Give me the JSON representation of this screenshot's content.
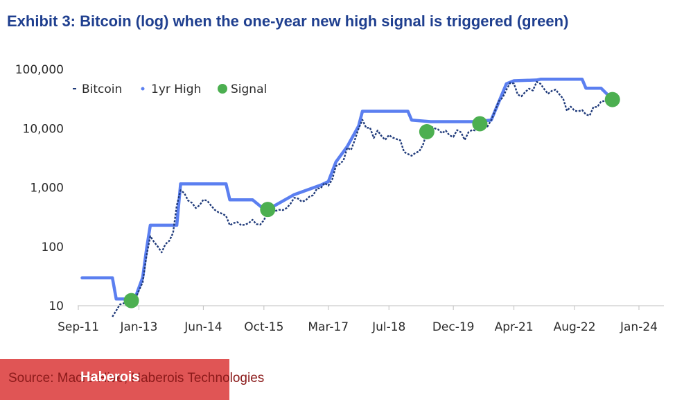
{
  "title": "Exhibit 3: Bitcoin (log) when the one-year new high signal is triggered (green)",
  "source": "Source: Macro Hive, Haberois Technologies",
  "watermark": "Haberois",
  "colors": {
    "title": "#1f3f8f",
    "bitcoin": "#1f3a7a",
    "high": "#5b7ff0",
    "signal": "#4caf50",
    "source_box": "#e05555"
  },
  "chart_data": {
    "type": "line",
    "title": "Exhibit 3: Bitcoin (log) when the one-year new high signal is triggered (green)",
    "y_scale": "log",
    "ylim": [
      10,
      100000
    ],
    "y_ticks": [
      10,
      100,
      1000,
      10000,
      100000
    ],
    "y_tick_labels": [
      "10",
      "100",
      "1,000",
      "10,000",
      "100,000"
    ],
    "xlim": [
      "2011-09",
      "2024-01"
    ],
    "x_tick_labels": [
      "Sep-11",
      "Jan-13",
      "Jun-14",
      "Oct-15",
      "Mar-17",
      "Jul-18",
      "Dec-19",
      "Apr-21",
      "Aug-22",
      "Jan-24"
    ],
    "x_ticks": [
      "2011-09",
      "2013-01",
      "2014-06",
      "2015-10",
      "2017-03",
      "2018-07",
      "2019-12",
      "2021-04",
      "2022-08",
      "2024-01"
    ],
    "legend": {
      "position": "top-left",
      "entries": [
        "Bitcoin",
        "1yr High",
        "Signal"
      ]
    },
    "series": [
      {
        "name": "Bitcoin",
        "style": "dashed",
        "points": [
          [
            "2012-06",
            6.5
          ],
          [
            "2012-08",
            10.5
          ],
          [
            "2012-10",
            11.5
          ],
          [
            "2012-12",
            13
          ],
          [
            "2013-02",
            25
          ],
          [
            "2013-03",
            70
          ],
          [
            "2013-04",
            150
          ],
          [
            "2013-05",
            120
          ],
          [
            "2013-06",
            100
          ],
          [
            "2013-07",
            80
          ],
          [
            "2013-08",
            110
          ],
          [
            "2013-09",
            125
          ],
          [
            "2013-10",
            170
          ],
          [
            "2013-11",
            500
          ],
          [
            "2013-12",
            900
          ],
          [
            "2014-01",
            800
          ],
          [
            "2014-02",
            600
          ],
          [
            "2014-03",
            550
          ],
          [
            "2014-04",
            450
          ],
          [
            "2014-05",
            500
          ],
          [
            "2014-06",
            620
          ],
          [
            "2014-07",
            600
          ],
          [
            "2014-08",
            500
          ],
          [
            "2014-09",
            420
          ],
          [
            "2014-10",
            380
          ],
          [
            "2014-11",
            360
          ],
          [
            "2014-12",
            330
          ],
          [
            "2015-01",
            230
          ],
          [
            "2015-02",
            250
          ],
          [
            "2015-03",
            260
          ],
          [
            "2015-04",
            230
          ],
          [
            "2015-05",
            235
          ],
          [
            "2015-06",
            250
          ],
          [
            "2015-07",
            285
          ],
          [
            "2015-08",
            240
          ],
          [
            "2015-09",
            235
          ],
          [
            "2015-10",
            280
          ],
          [
            "2015-11",
            380
          ],
          [
            "2015-12",
            430
          ],
          [
            "2016-01",
            400
          ],
          [
            "2016-02",
            420
          ],
          [
            "2016-03",
            415
          ],
          [
            "2016-04",
            450
          ],
          [
            "2016-05",
            530
          ],
          [
            "2016-06",
            670
          ],
          [
            "2016-07",
            650
          ],
          [
            "2016-08",
            575
          ],
          [
            "2016-09",
            605
          ],
          [
            "2016-10",
            700
          ],
          [
            "2016-11",
            740
          ],
          [
            "2016-12",
            960
          ],
          [
            "2017-01",
            970
          ],
          [
            "2017-02",
            1190
          ],
          [
            "2017-03",
            1080
          ],
          [
            "2017-04",
            1350
          ],
          [
            "2017-05",
            2300
          ],
          [
            "2017-06",
            2500
          ],
          [
            "2017-07",
            2870
          ],
          [
            "2017-08",
            4700
          ],
          [
            "2017-09",
            4340
          ],
          [
            "2017-10",
            6400
          ],
          [
            "2017-11",
            10000
          ],
          [
            "2017-12",
            14000
          ],
          [
            "2018-01",
            10200
          ],
          [
            "2018-02",
            10300
          ],
          [
            "2018-03",
            6900
          ],
          [
            "2018-04",
            9200
          ],
          [
            "2018-05",
            7500
          ],
          [
            "2018-06",
            6400
          ],
          [
            "2018-07",
            7700
          ],
          [
            "2018-08",
            7000
          ],
          [
            "2018-09",
            6600
          ],
          [
            "2018-10",
            6300
          ],
          [
            "2018-11",
            4000
          ],
          [
            "2018-12",
            3700
          ],
          [
            "2019-01",
            3450
          ],
          [
            "2019-02",
            3850
          ],
          [
            "2019-03",
            4100
          ],
          [
            "2019-04",
            5300
          ],
          [
            "2019-05",
            8600
          ],
          [
            "2019-06",
            10800
          ],
          [
            "2019-07",
            10100
          ],
          [
            "2019-08",
            9600
          ],
          [
            "2019-09",
            8300
          ],
          [
            "2019-10",
            9200
          ],
          [
            "2019-11",
            7600
          ],
          [
            "2019-12",
            7200
          ],
          [
            "2020-01",
            9350
          ],
          [
            "2020-02",
            8600
          ],
          [
            "2020-03",
            6400
          ],
          [
            "2020-04",
            8600
          ],
          [
            "2020-05",
            9450
          ],
          [
            "2020-06",
            9140
          ],
          [
            "2020-07",
            11350
          ],
          [
            "2020-08",
            11650
          ],
          [
            "2020-09",
            10800
          ],
          [
            "2020-10",
            13800
          ],
          [
            "2020-11",
            19700
          ],
          [
            "2020-12",
            29000
          ],
          [
            "2021-01",
            33100
          ],
          [
            "2021-02",
            45100
          ],
          [
            "2021-03",
            58800
          ],
          [
            "2021-04",
            57700
          ],
          [
            "2021-05",
            37300
          ],
          [
            "2021-06",
            35000
          ],
          [
            "2021-07",
            41500
          ],
          [
            "2021-08",
            47100
          ],
          [
            "2021-09",
            43800
          ],
          [
            "2021-10",
            61300
          ],
          [
            "2021-11",
            57000
          ],
          [
            "2021-12",
            46300
          ],
          [
            "2022-01",
            38500
          ],
          [
            "2022-02",
            43200
          ],
          [
            "2022-03",
            45500
          ],
          [
            "2022-04",
            37700
          ],
          [
            "2022-05",
            31800
          ],
          [
            "2022-06",
            19900
          ],
          [
            "2022-07",
            23300
          ],
          [
            "2022-08",
            20000
          ],
          [
            "2022-09",
            19400
          ],
          [
            "2022-10",
            20500
          ],
          [
            "2022-11",
            17200
          ],
          [
            "2022-12",
            16500
          ],
          [
            "2023-01",
            23100
          ],
          [
            "2023-02",
            23100
          ],
          [
            "2023-03",
            28500
          ],
          [
            "2023-04",
            29200
          ],
          [
            "2023-05",
            27200
          ],
          [
            "2023-06",
            30500
          ]
        ]
      },
      {
        "name": "1yr High",
        "style": "solid",
        "points": [
          [
            "2011-10",
            29.6
          ],
          [
            "2012-06",
            29.6
          ],
          [
            "2012-07",
            13
          ],
          [
            "2012-10",
            13
          ],
          [
            "2012-12",
            13.5
          ],
          [
            "2013-02",
            30
          ],
          [
            "2013-03",
            90
          ],
          [
            "2013-04",
            230
          ],
          [
            "2013-11",
            230
          ],
          [
            "2013-12",
            1150
          ],
          [
            "2014-12",
            1150
          ],
          [
            "2015-01",
            620
          ],
          [
            "2015-07",
            620
          ],
          [
            "2015-10",
            430
          ],
          [
            "2015-12",
            460
          ],
          [
            "2016-06",
            760
          ],
          [
            "2017-01",
            1100
          ],
          [
            "2017-03",
            1260
          ],
          [
            "2017-05",
            2700
          ],
          [
            "2017-08",
            4950
          ],
          [
            "2017-11",
            11000
          ],
          [
            "2017-12",
            19500
          ],
          [
            "2018-12",
            19500
          ],
          [
            "2019-01",
            13800
          ],
          [
            "2019-06",
            13000
          ],
          [
            "2020-06",
            13000
          ],
          [
            "2020-10",
            13800
          ],
          [
            "2020-12",
            28000
          ],
          [
            "2021-02",
            57000
          ],
          [
            "2021-04",
            64000
          ],
          [
            "2021-10",
            66000
          ],
          [
            "2021-11",
            68000
          ],
          [
            "2022-10",
            68000
          ],
          [
            "2022-11",
            48000
          ],
          [
            "2023-03",
            48000
          ],
          [
            "2023-06",
            31000
          ]
        ]
      }
    ],
    "signals": [
      [
        "2012-11",
        12.2
      ],
      [
        "2015-11",
        425
      ],
      [
        "2019-05",
        8800
      ],
      [
        "2020-07",
        12000
      ],
      [
        "2023-06",
        30800
      ]
    ]
  },
  "legend_labels": {
    "bitcoin": "Bitcoin",
    "high": "1yr High",
    "signal": "Signal"
  }
}
